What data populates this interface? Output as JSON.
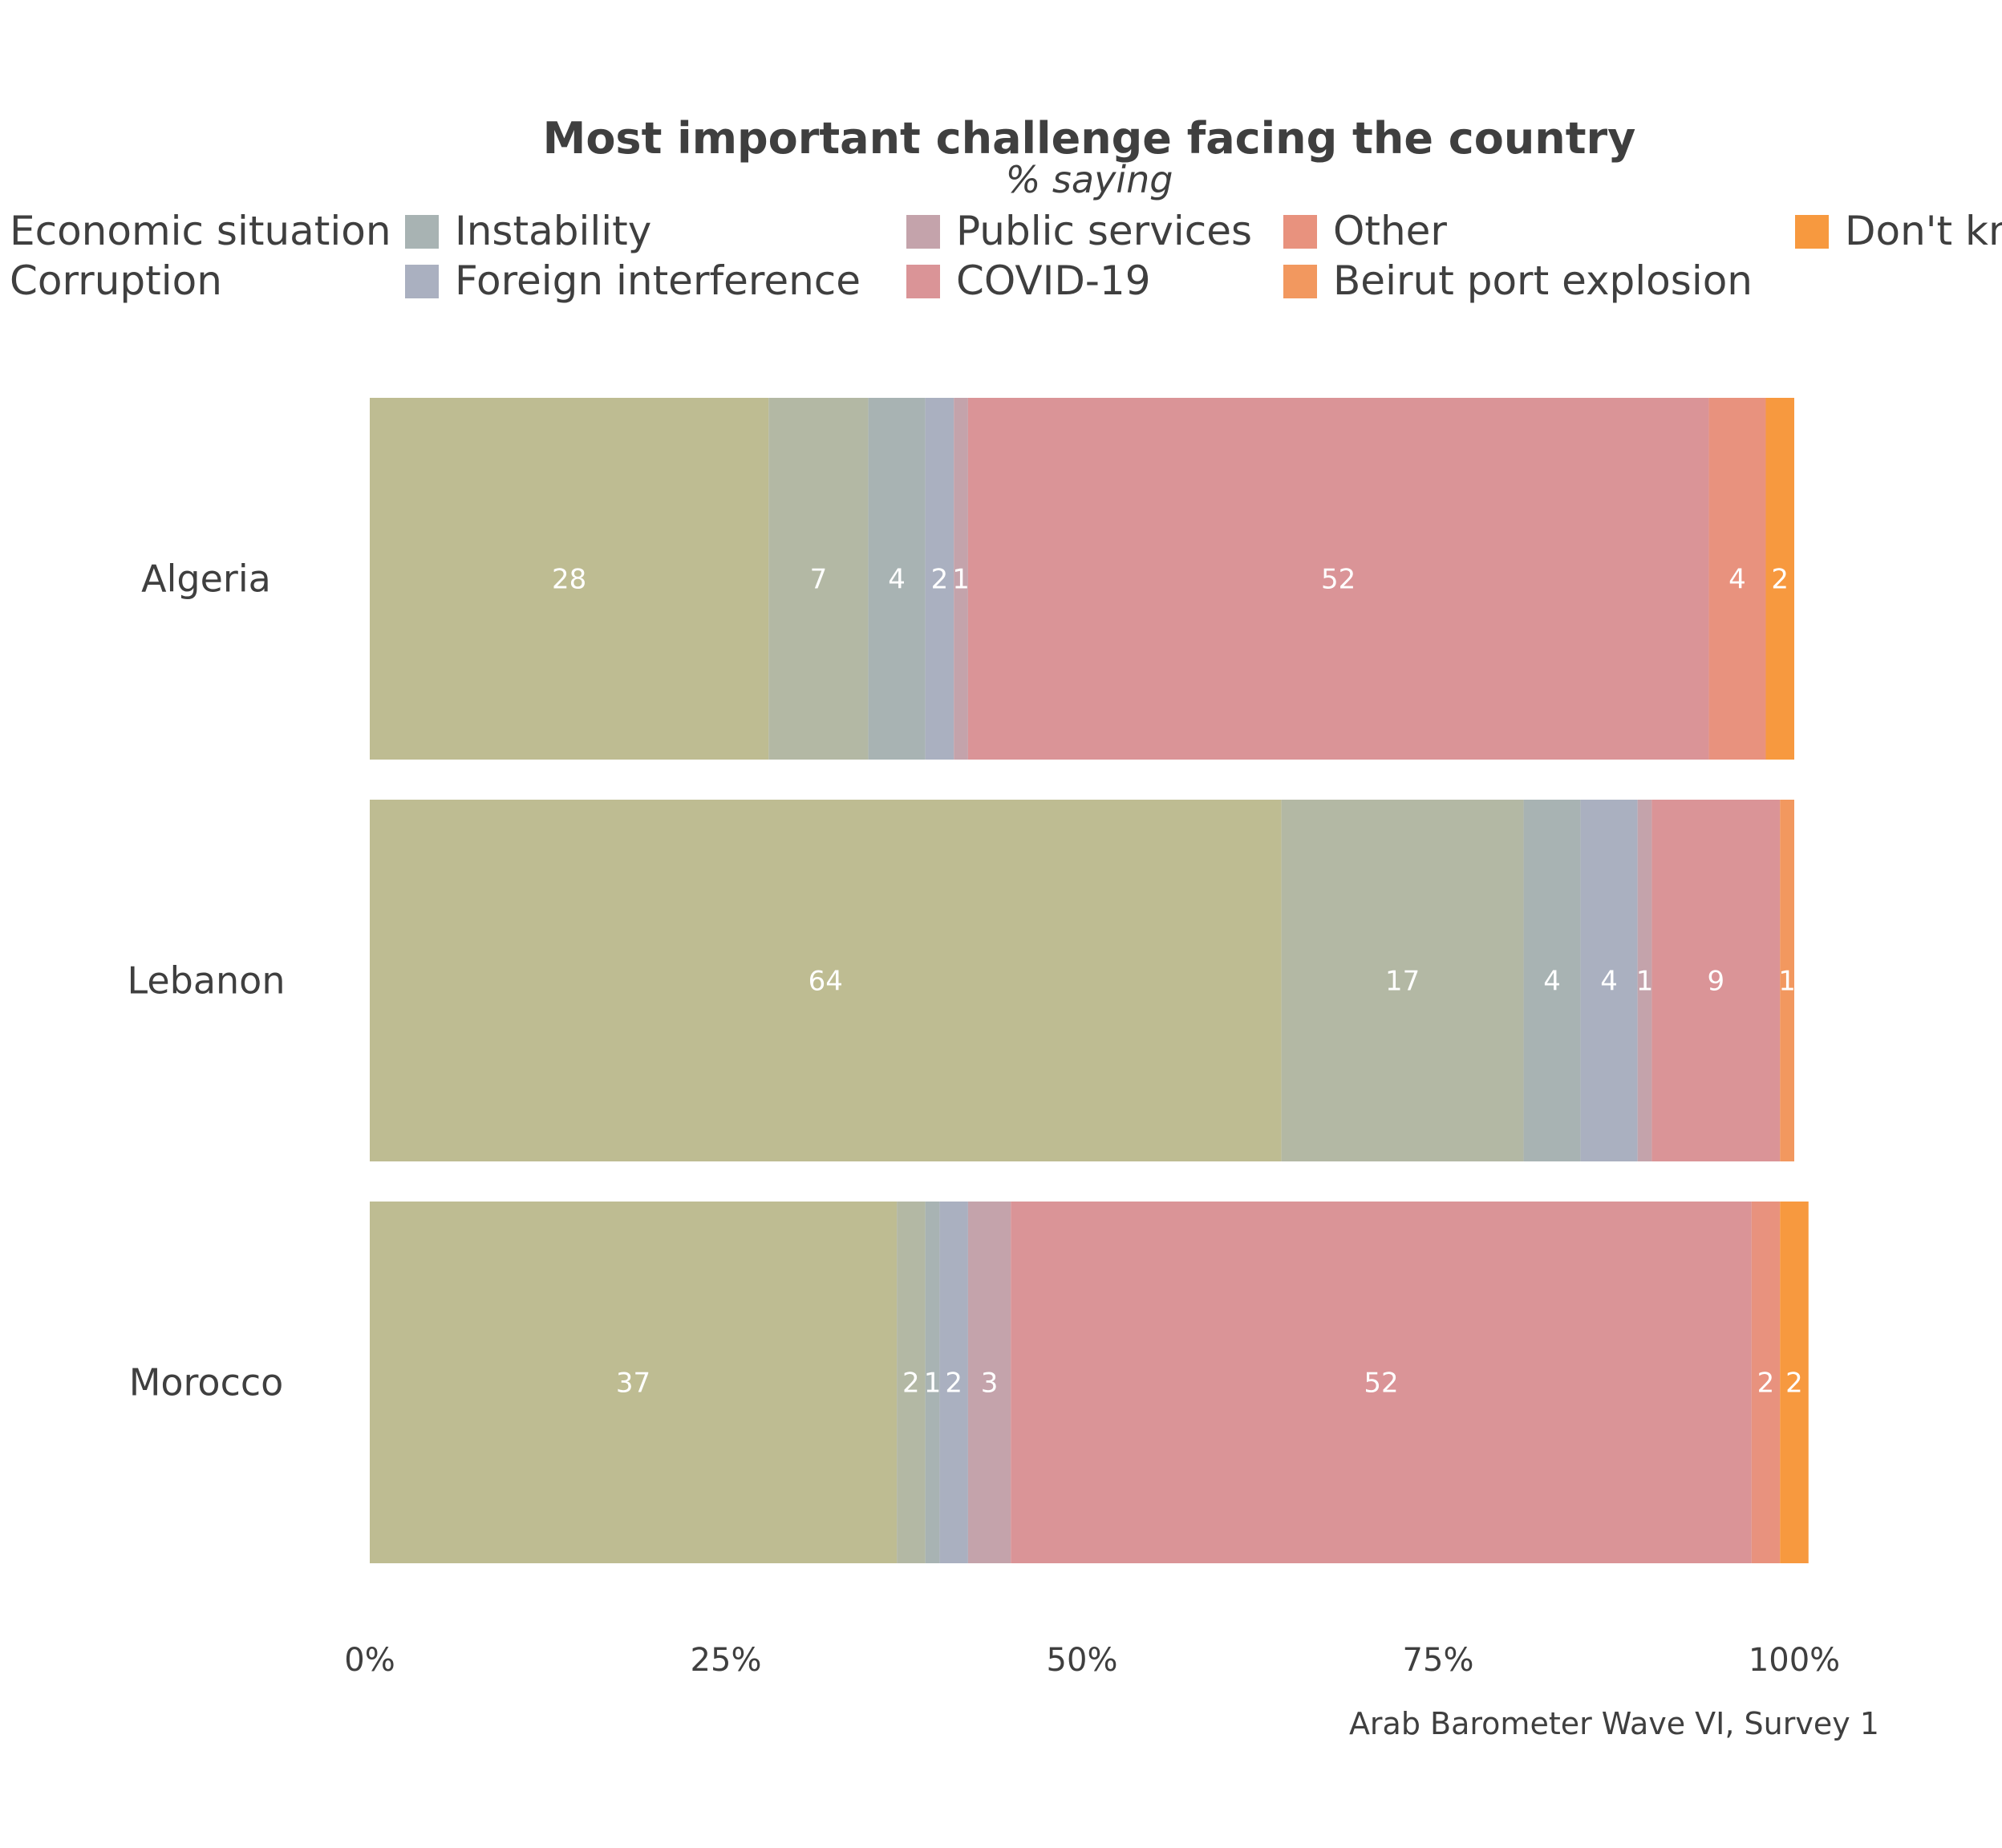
{
  "chart_data": {
    "type": "bar",
    "orientation": "horizontal",
    "stacked": true,
    "title": "Most important challenge facing the country",
    "subtitle": "% saying",
    "caption": "Arab Barometer Wave VI, Survey 1",
    "categories": [
      "Algeria",
      "Lebanon",
      "Morocco"
    ],
    "xlim": [
      0,
      100
    ],
    "x_ticks": [
      "0%",
      "25%",
      "50%",
      "75%",
      "100%"
    ],
    "grid": false,
    "legend_position": "top",
    "legend": [
      {
        "name": "Economic situation",
        "color": "#bebc92"
      },
      {
        "name": "Corruption",
        "color": "#b3b8a4"
      },
      {
        "name": "Instability",
        "color": "#a8b3b3"
      },
      {
        "name": "Foreign interference",
        "color": "#aab0c0"
      },
      {
        "name": "Public services",
        "color": "#c4a3ab"
      },
      {
        "name": "COVID-19",
        "color": "#da9497"
      },
      {
        "name": "Other",
        "color": "#e8927e"
      },
      {
        "name": "Beirut port explosion",
        "color": "#f2985f"
      },
      {
        "name": "Don't know",
        "color": "#f7993f"
      }
    ],
    "series": [
      {
        "name": "Economic situation",
        "values": [
          28,
          64,
          37
        ],
        "labels": [
          "28",
          "64",
          "37"
        ]
      },
      {
        "name": "Corruption",
        "values": [
          7,
          17,
          2
        ],
        "labels": [
          "7",
          "17",
          "2"
        ]
      },
      {
        "name": "Instability",
        "values": [
          4,
          4,
          1
        ],
        "labels": [
          "4",
          "4",
          "1"
        ]
      },
      {
        "name": "Foreign interference",
        "values": [
          2,
          4,
          2
        ],
        "labels": [
          "2",
          "4",
          "2"
        ]
      },
      {
        "name": "Public services",
        "values": [
          1,
          1,
          3
        ],
        "labels": [
          "1",
          "1",
          "3"
        ]
      },
      {
        "name": "COVID-19",
        "values": [
          52,
          9,
          52
        ],
        "labels": [
          "52",
          "9",
          "52"
        ]
      },
      {
        "name": "Other",
        "values": [
          4,
          0,
          2
        ],
        "labels": [
          "4",
          "",
          "2"
        ]
      },
      {
        "name": "Beirut port explosion",
        "values": [
          0,
          1,
          0
        ],
        "labels": [
          "",
          "1",
          ""
        ]
      },
      {
        "name": "Don't know",
        "values": [
          2,
          0,
          2
        ],
        "labels": [
          "2",
          "",
          "2"
        ]
      }
    ]
  }
}
